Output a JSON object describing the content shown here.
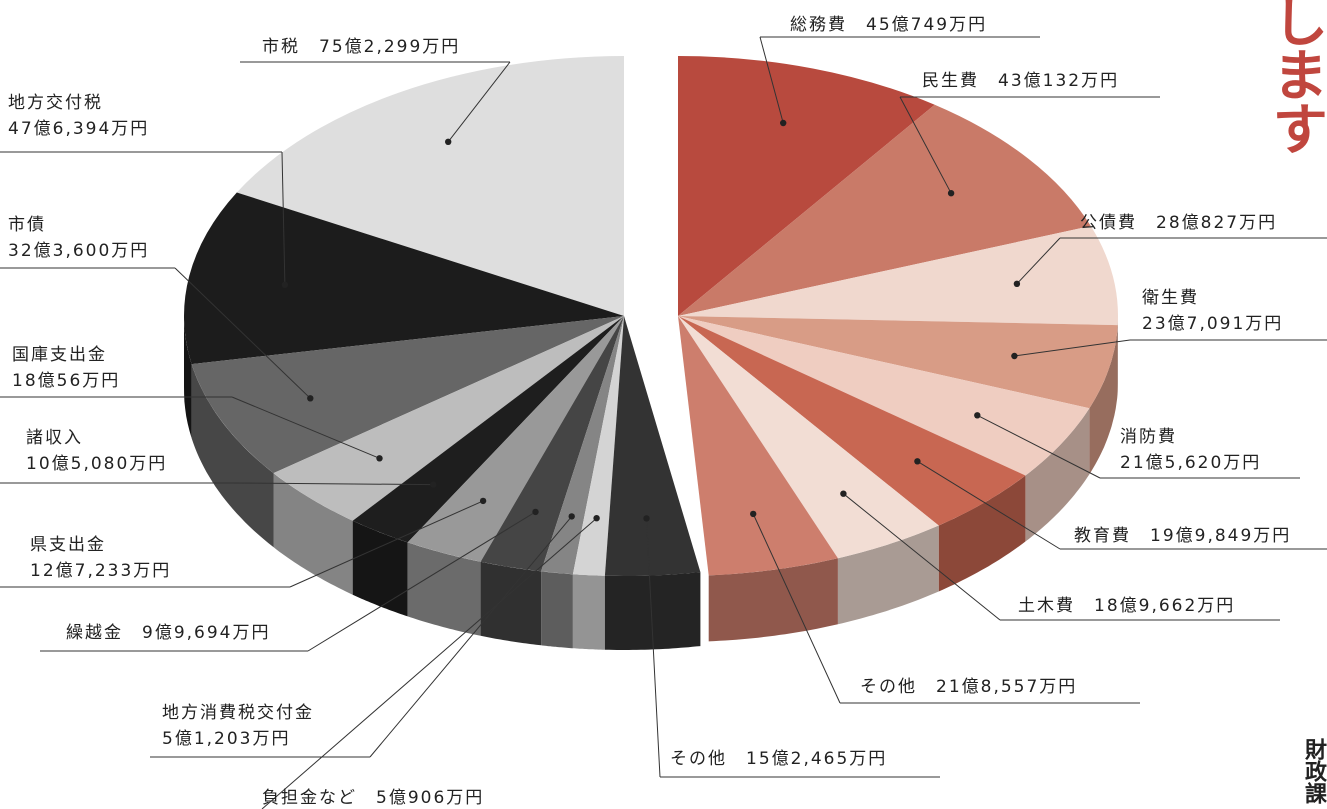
{
  "side_title": "します",
  "department": "財政課",
  "colors": {
    "revenue": [
      "#dedede",
      "#1c1c1c",
      "#666666",
      "#bdbdbd",
      "#1e1e1e",
      "#999999",
      "#454545",
      "#858585",
      "#d4d4d4",
      "#333333"
    ],
    "expenditure": [
      "#b84a3e",
      "#c97a68",
      "#f0d8ce",
      "#d89c86",
      "#efcdc1",
      "#c86752",
      "#f2ddd4",
      "#cd7e6d"
    ]
  },
  "chart_data": [
    {
      "type": "pie",
      "series": [
        {
          "categories": [
            "市税",
            "地方交付税",
            "市債",
            "国庫支出金",
            "諸収入",
            "県支出金",
            "繰越金",
            "地方消費税交付金",
            "負担金など",
            "その他"
          ],
          "values": [
            75.2299,
            47.6394,
            32.36,
            18.0056,
            10.508,
            12.7233,
            9.9694,
            5.1203,
            5.0906,
            15.2465
          ],
          "labels": [
            [
              "市税　75億2,299万円"
            ],
            [
              "地方交付税",
              "47億6,394万円"
            ],
            [
              "市債",
              "32億3,600万円"
            ],
            [
              "国庫支出金",
              "18億56万円"
            ],
            [
              "諸収入",
              "10億5,080万円"
            ],
            [
              "県支出金",
              "12億7,233万円"
            ],
            [
              "繰越金　9億9,694万円"
            ],
            [
              "地方消費税交付金",
              "5億1,203万円"
            ],
            [
              "負担金など　5億906万円"
            ],
            [
              "その他　15億2,465万円"
            ]
          ]
        },
        {
          "categories": [
            "総務費",
            "民生費",
            "公債費",
            "衛生費",
            "消防費",
            "教育費",
            "土木費",
            "その他"
          ],
          "values": [
            45.0749,
            43.0132,
            28.0827,
            23.7091,
            21.562,
            19.9849,
            18.9662,
            21.8557
          ],
          "labels": [
            [
              "総務費　45億749万円"
            ],
            [
              "民生費　43億132万円"
            ],
            [
              "公債費　28億827万円"
            ],
            [
              "衛生費",
              "23億7,091万円"
            ],
            [
              "消防費",
              "21億5,620万円"
            ],
            [
              "教育費　19億9,849万円"
            ],
            [
              "土木費　18億9,662万円"
            ],
            [
              "その他　21億8,557万円"
            ]
          ]
        }
      ]
    }
  ]
}
